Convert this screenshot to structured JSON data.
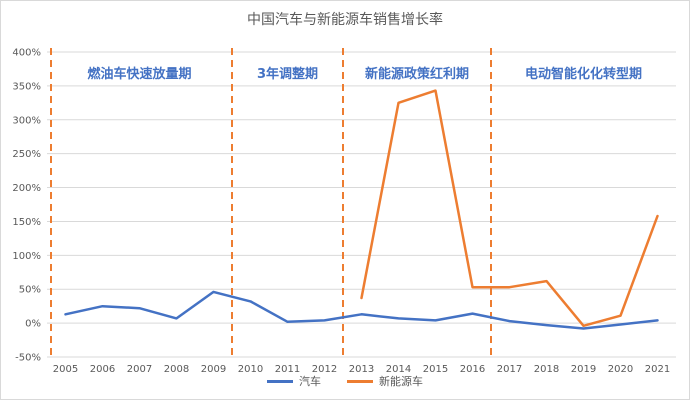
{
  "chart_data": {
    "type": "line",
    "title": "中国汽车与新能源车销售增长率",
    "x": [
      "2005",
      "2006",
      "2007",
      "2008",
      "2009",
      "2010",
      "2011",
      "2012",
      "2013",
      "2014",
      "2015",
      "2016",
      "2017",
      "2018",
      "2019",
      "2020",
      "2021"
    ],
    "y_ticks": [
      "400%",
      "350%",
      "300%",
      "250%",
      "200%",
      "150%",
      "100%",
      "50%",
      "0%",
      "-50%"
    ],
    "ylim": [
      -0.5,
      4.0
    ],
    "grid": true,
    "legend_position": "bottom",
    "series": [
      {
        "name": "汽车",
        "color": "#4472c4",
        "values": [
          0.13,
          0.25,
          0.22,
          0.07,
          0.46,
          0.32,
          0.02,
          0.04,
          0.13,
          0.07,
          0.04,
          0.14,
          0.03,
          -0.03,
          -0.08,
          -0.02,
          0.04
        ]
      },
      {
        "name": "新能源车",
        "color": "#ed7d31",
        "values": [
          null,
          null,
          null,
          null,
          null,
          null,
          null,
          null,
          0.37,
          3.25,
          3.43,
          0.53,
          0.53,
          0.62,
          -0.04,
          0.11,
          1.58
        ]
      }
    ],
    "phases": [
      {
        "label": "燃油车快速放量期"
      },
      {
        "label": "3年调整期"
      },
      {
        "label": "新能源政策红利期"
      },
      {
        "label": "电动智能化化转型期"
      }
    ],
    "phase_divider_color": "#ed7d31"
  }
}
